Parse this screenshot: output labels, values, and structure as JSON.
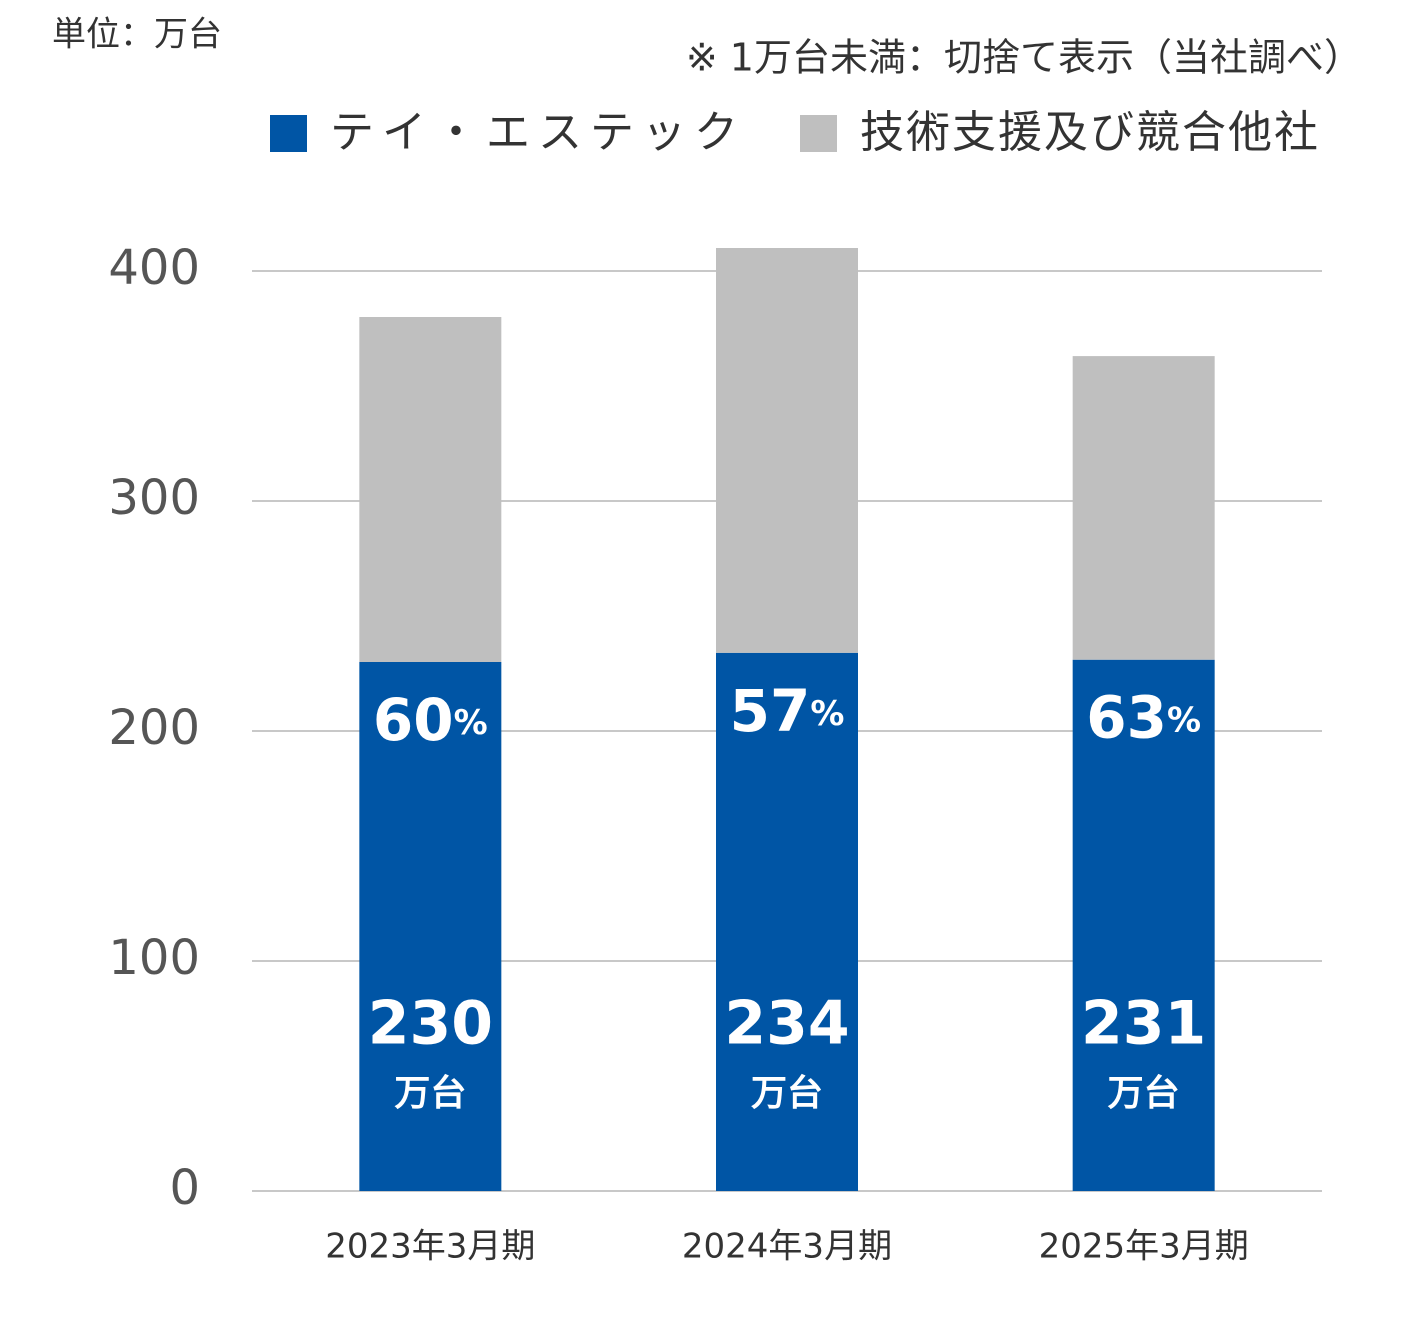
{
  "chart_data": {
    "type": "stacked_bar",
    "unit_note": "単位：万台",
    "note": "※ 1万台未満：切捨て表示（当社調べ）",
    "categories": [
      "2023年3月期",
      "2024年3月期",
      "2025年3月期"
    ],
    "series": [
      {
        "name": "テイ・エステック",
        "color": "#0055a5",
        "values": [
          230,
          234,
          231
        ]
      },
      {
        "name": "技術支援及び競合他社",
        "color": "#bfbfbf",
        "values": [
          150,
          176,
          132
        ]
      }
    ],
    "value_unit": "万台",
    "shares": [
      60,
      57,
      63
    ],
    "share_unit": "%",
    "ylim": [
      0,
      400
    ],
    "yticks": [
      0,
      100,
      200,
      300,
      400
    ],
    "grid": true
  }
}
